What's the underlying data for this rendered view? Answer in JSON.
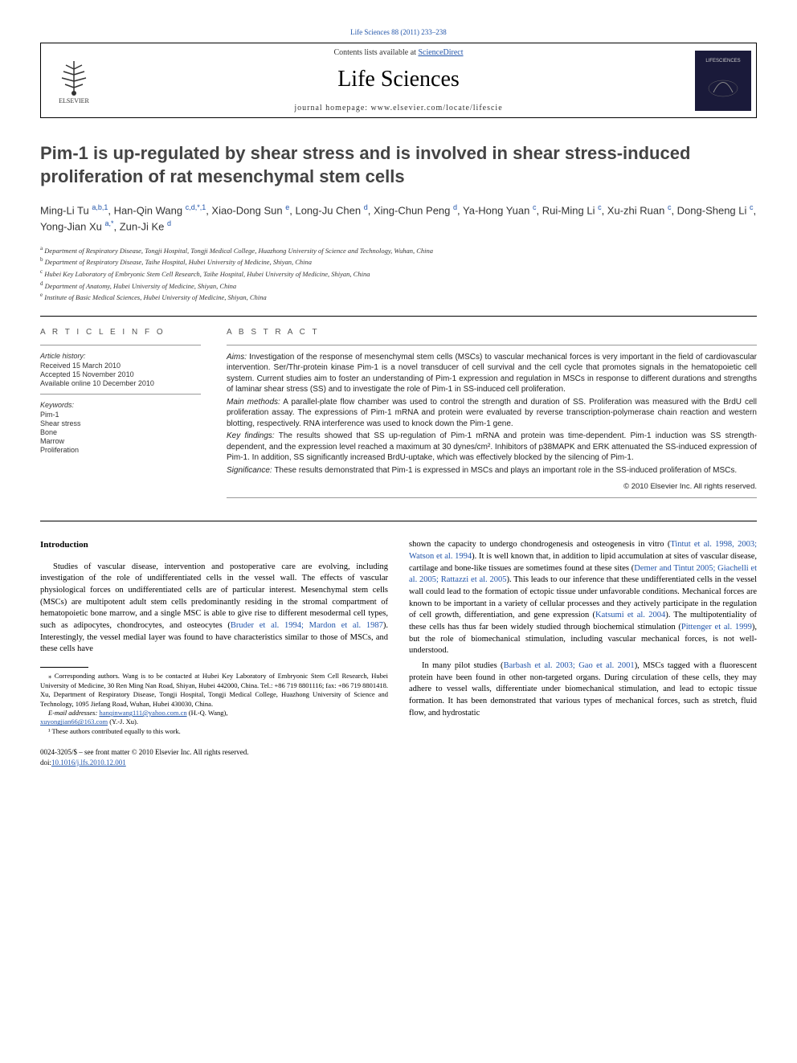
{
  "top_link": "Life Sciences 88 (2011) 233–238",
  "header": {
    "contents_text": "Contents lists available at ",
    "contents_link": "ScienceDirect",
    "journal_name": "Life Sciences",
    "homepage_label": "journal homepage: www.elsevier.com/locate/lifescie",
    "elsevier_label": "ELSEVIER",
    "right_logo_text": "LIFESCIENCES"
  },
  "article": {
    "title": "Pim-1 is up-regulated by shear stress and is involved in shear stress-induced proliferation of rat mesenchymal stem cells",
    "authors_html": "Ming-Li Tu <sup>a,b,1</sup>, Han-Qin Wang <sup>c,d,*,1</sup>, Xiao-Dong Sun <sup>e</sup>, Long-Ju Chen <sup>d</sup>, Xing-Chun Peng <sup>d</sup>, Ya-Hong Yuan <sup>c</sup>, Rui-Ming Li <sup>c</sup>, Xu-zhi Ruan <sup>c</sup>, Dong-Sheng Li <sup>c</sup>, Yong-Jian Xu <sup>a,*</sup>, Zun-Ji Ke <sup>d</sup>",
    "affiliations": [
      {
        "sup": "a",
        "text": "Department of Respiratory Disease, Tongji Hospital, Tongji Medical College, Huazhong University of Science and Technology, Wuhan, China"
      },
      {
        "sup": "b",
        "text": "Department of Respiratory Disease, Taihe Hospital, Hubei University of Medicine, Shiyan, China"
      },
      {
        "sup": "c",
        "text": "Hubei Key Laboratory of Embryonic Stem Cell Research, Taihe Hospital, Hubei University of Medicine, Shiyan, China"
      },
      {
        "sup": "d",
        "text": "Department of Anatomy, Hubei University of Medicine, Shiyan, China"
      },
      {
        "sup": "e",
        "text": "Institute of Basic Medical Sciences, Hubei University of Medicine, Shiyan, China"
      }
    ]
  },
  "article_info": {
    "heading": "A R T I C L E  I N F O",
    "history_label": "Article history:",
    "received": "Received 15 March 2010",
    "accepted": "Accepted 15 November 2010",
    "online": "Available online 10 December 2010",
    "keywords_label": "Keywords:",
    "keywords": [
      "Pim-1",
      "Shear stress",
      "Bone",
      "Marrow",
      "Proliferation"
    ]
  },
  "abstract": {
    "heading": "A B S T R A C T",
    "aims_label": "Aims:",
    "aims": "Investigation of the response of mesenchymal stem cells (MSCs) to vascular mechanical forces is very important in the field of cardiovascular intervention. Ser/Thr-protein kinase Pim-1 is a novel transducer of cell survival and the cell cycle that promotes signals in the hematopoietic cell system. Current studies aim to foster an understanding of Pim-1 expression and regulation in MSCs in response to different durations and strengths of laminar shear stress (SS) and to investigate the role of Pim-1 in SS-induced cell proliferation.",
    "methods_label": "Main methods:",
    "methods": "A parallel-plate flow chamber was used to control the strength and duration of SS. Proliferation was measured with the BrdU cell proliferation assay. The expressions of Pim-1 mRNA and protein were evaluated by reverse transcription-polymerase chain reaction and western blotting, respectively. RNA interference was used to knock down the Pim-1 gene.",
    "findings_label": "Key findings:",
    "findings": "The results showed that SS up-regulation of Pim-1 mRNA and protein was time-dependent. Pim-1 induction was SS strength-dependent, and the expression level reached a maximum at 30 dynes/cm². Inhibitors of p38MAPK and ERK attenuated the SS-induced expression of Pim-1. In addition, SS significantly increased BrdU-uptake, which was effectively blocked by the silencing of Pim-1.",
    "significance_label": "Significance:",
    "significance": "These results demonstrated that Pim-1 is expressed in MSCs and plays an important role in the SS-induced proliferation of MSCs.",
    "copyright": "© 2010 Elsevier Inc. All rights reserved."
  },
  "intro": {
    "heading": "Introduction",
    "para1_pre": "Studies of vascular disease, intervention and postoperative care are evolving, including investigation of the role of undifferentiated cells in the vessel wall. The effects of vascular physiological forces on undifferentiated cells are of particular interest. Mesenchymal stem cells (MSCs) are multipotent adult stem cells predominantly residing in the stromal compartment of hematopoietic bone marrow, and a single MSC is able to give rise to different mesodermal cell types, such as adipocytes, chondrocytes, and osteocytes (",
    "para1_cite1": "Bruder et al. 1994; Mardon et al. 1987",
    "para1_mid": "). Interestingly, the vessel medial layer was found to have characteristics similar to those of MSCs, and these cells have",
    "para2_pre": "shown the capacity to undergo chondrogenesis and osteogenesis in vitro (",
    "para2_cite1": "Tintut et al. 1998, 2003; Watson et al. 1994",
    "para2_mid1": "). It is well known that, in addition to lipid accumulation at sites of vascular disease, cartilage and bone-like tissues are sometimes found at these sites (",
    "para2_cite2": "Demer and Tintut 2005; Giachelli et al. 2005; Rattazzi et al. 2005",
    "para2_mid2": "). This leads to our inference that these undifferentiated cells in the vessel wall could lead to the formation of ectopic tissue under unfavorable conditions. Mechanical forces are known to be important in a variety of cellular processes and they actively participate in the regulation of cell growth, differentiation, and gene expression (",
    "para2_cite3": "Katsumi et al. 2004",
    "para2_mid3": "). The multipotentiality of these cells has thus far been widely studied through biochemical stimulation (",
    "para2_cite4": "Pittenger et al. 1999",
    "para2_post": "), but the role of biomechanical stimulation, including vascular mechanical forces, is not well-understood.",
    "para3_pre": "In many pilot studies (",
    "para3_cite1": "Barbash et al. 2003; Gao et al. 2001",
    "para3_post": "), MSCs tagged with a fluorescent protein have been found in other non-targeted organs. During circulation of these cells, they may adhere to vessel walls, differentiate under biomechanical stimulation, and lead to ectopic tissue formation. It has been demonstrated that various types of mechanical forces, such as stretch, fluid flow, and hydrostatic"
  },
  "footnotes": {
    "corresponding": "⁎ Corresponding authors. Wang is to be contacted at Hubei Key Laboratory of Embryonic Stem Cell Research, Hubei University of Medicine, 30 Ren Ming Nan Road, Shiyan, Hubei 442000, China. Tel.: +86 719 8801116; fax: +86 719 8801418. Xu, Department of Respiratory Disease, Tongji Hospital, Tongji Medical College, Huazhong University of Science and Technology, 1095 Jiefang Road, Wuhan, Hubei 430030, China.",
    "email_label": "E-mail addresses:",
    "email1": "hanqinwang111@yahoo.com.cn",
    "email1_name": "(H.-Q. Wang),",
    "email2": "xuyongjian66@163.com",
    "email2_name": "(Y.-J. Xu).",
    "equal": "¹ These authors contributed equally to this work."
  },
  "doi": {
    "front_matter": "0024-3205/$ – see front matter © 2010 Elsevier Inc. All rights reserved.",
    "doi_label": "doi:",
    "doi_link": "10.1016/j.lfs.2010.12.001"
  },
  "colors": {
    "link": "#2255aa",
    "text": "#222222",
    "heading_gray": "#555555",
    "dark_logo": "#1a1a3a"
  }
}
